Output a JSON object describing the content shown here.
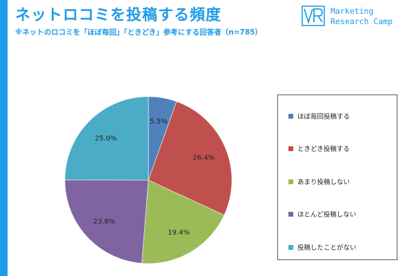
{
  "header": {
    "title": "ネットロコミを投稿する頻度",
    "subtitle": "※ネットのロコミを「ほぼ毎回」「ときどき」参考にする回答者（n=785）",
    "accent_color": "#1e9be6"
  },
  "logo": {
    "mark_icon": "vr-logo-icon",
    "line1": "Marketing",
    "line2": "Research Camp"
  },
  "chart_data": {
    "type": "pie",
    "start_angle_deg": 0,
    "direction": "clockwise",
    "slices": [
      {
        "label": "ほぼ毎回投稿する",
        "value": 5.5,
        "display": "5.5%",
        "color": "#4f81bd"
      },
      {
        "label": "ときどき投稿する",
        "value": 26.4,
        "display": "26.4%",
        "color": "#c0504d"
      },
      {
        "label": "あまり投稿しない",
        "value": 19.4,
        "display": "19.4%",
        "color": "#9bbb59"
      },
      {
        "label": "ほとんど投稿しない",
        "value": 23.8,
        "display": "23.8%",
        "color": "#8064a2"
      },
      {
        "label": "投稿したことがない",
        "value": 25.0,
        "display": "25.0%",
        "color": "#4bacc6"
      }
    ],
    "legend_position": "right"
  }
}
